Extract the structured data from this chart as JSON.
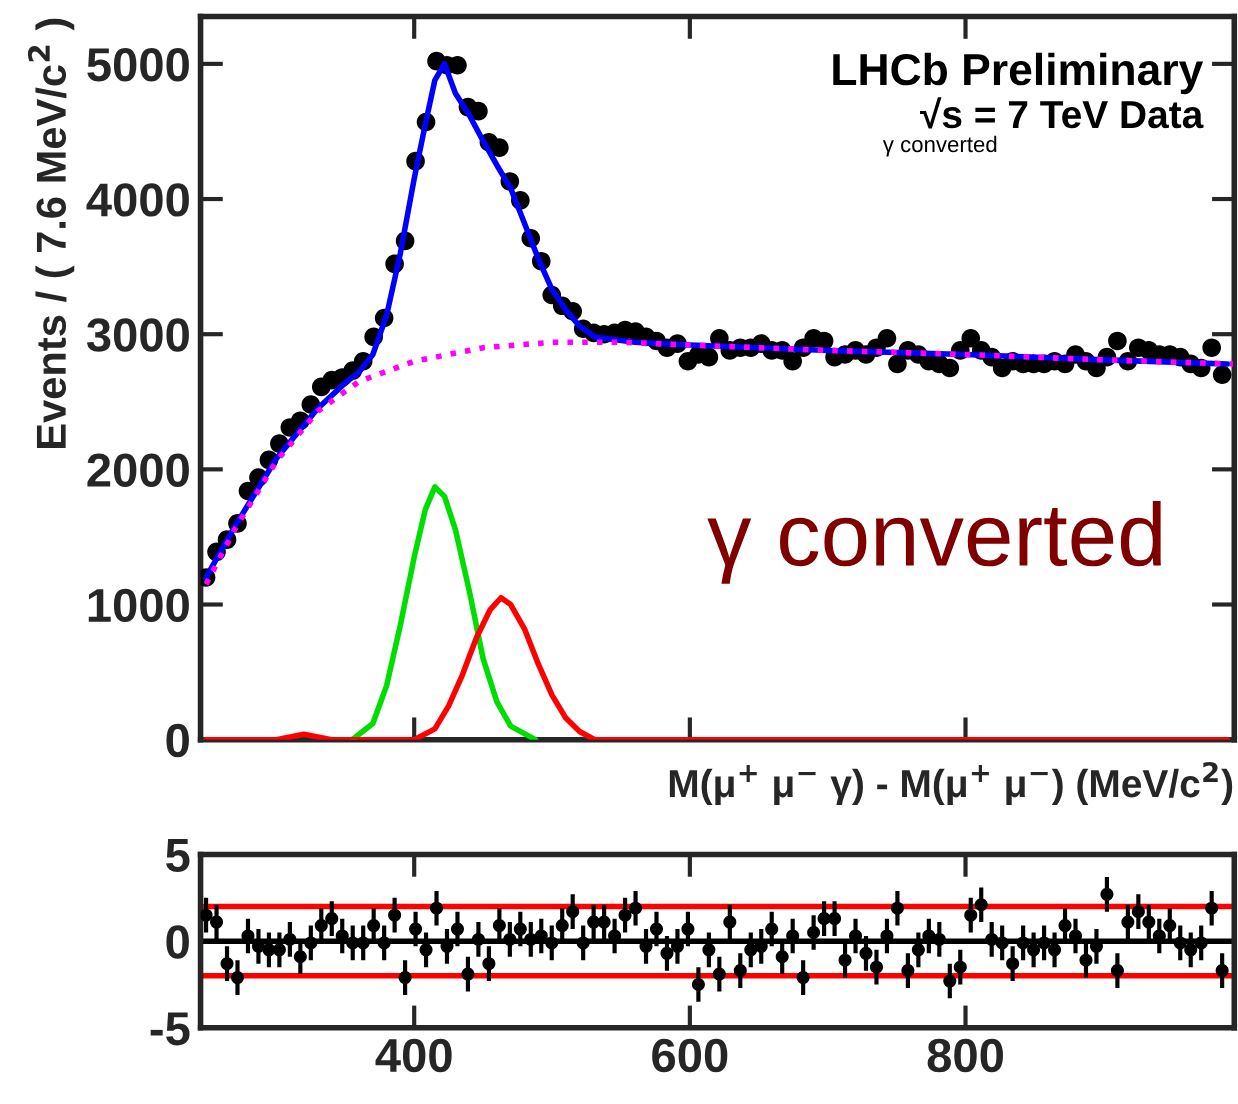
{
  "chart_data": [
    {
      "type": "scatter",
      "ylabel": "Events / ( 7.6 MeV/c$^{2}$ )",
      "xlabel": "M(μ$^{+}$ μ$^{−}$ γ) - M(μ$^{+}$ μ$^{−}$) (MeV/c$^{2}$)",
      "xlim": [
        245,
        995
      ],
      "xticks": [
        {
          "value": 400,
          "label": null
        },
        {
          "value": 600,
          "label": null
        },
        {
          "value": 800,
          "label": null
        }
      ],
      "ylim": [
        0,
        5350
      ],
      "yticks": [
        0,
        1000,
        2000,
        3000,
        4000,
        5000
      ],
      "tick_labels": "y",
      "grid": false,
      "legend": false,
      "annotations": [
        "LHCb Preliminary",
        "√s = 7 TeV Data",
        "γ converted",
        "γ converted"
      ],
      "series": [
        {
          "type": "scatter",
          "color": "#000000",
          "marker": "circle",
          "x": [
            249,
            256.6,
            264.2,
            271.8,
            279.4,
            287,
            294.6,
            302.2,
            309.8,
            317.4,
            325,
            332.6,
            340.2,
            347.8,
            355.4,
            363,
            370.6,
            378.2,
            385.8,
            393.4,
            401,
            408.6,
            416.2,
            423.8,
            431.4,
            439,
            446.6,
            454.2,
            461.8,
            469.4,
            477,
            484.6,
            492.2,
            499.8,
            507.4,
            515,
            522.6,
            530.2,
            537.8,
            545.4,
            553,
            560.6,
            568.2,
            575.8,
            583.4,
            591,
            598.6,
            606.2,
            613.8,
            621.4,
            629,
            636.6,
            644.2,
            651.8,
            659.4,
            667,
            674.6,
            682.2,
            689.8,
            697.4,
            705,
            712.6,
            720.2,
            727.8,
            735.4,
            743,
            750.6,
            758.2,
            765.8,
            773.4,
            781,
            788.6,
            796.2,
            803.8,
            811.4,
            819,
            826.6,
            834.2,
            841.8,
            849.4,
            857,
            864.6,
            872.2,
            879.8,
            887.4,
            895,
            902.6,
            910.2,
            917.8,
            925.4,
            933,
            940.6,
            948.2,
            955.8,
            963.4,
            971,
            978.6,
            986.2
          ],
          "values": [
            1200,
            1390,
            1480,
            1600,
            1840,
            1940,
            2070,
            2190,
            2310,
            2360,
            2480,
            2610,
            2660,
            2680,
            2730,
            2800,
            2980,
            3120,
            3520,
            3690,
            4280,
            4570,
            5020,
            4990,
            4990,
            4680,
            4650,
            4420,
            4380,
            4130,
            3990,
            3710,
            3540,
            3290,
            3210,
            3170,
            3040,
            3010,
            3000,
            3010,
            3030,
            3020,
            2980,
            2950,
            2900,
            2930,
            2800,
            2850,
            2830,
            2970,
            2880,
            2900,
            2900,
            2930,
            2880,
            2880,
            2800,
            2900,
            2970,
            2950,
            2830,
            2850,
            2880,
            2850,
            2900,
            2970,
            2780,
            2880,
            2850,
            2800,
            2780,
            2750,
            2880,
            2970,
            2880,
            2830,
            2750,
            2800,
            2780,
            2780,
            2780,
            2800,
            2780,
            2850,
            2800,
            2750,
            2830,
            2950,
            2800,
            2900,
            2880,
            2850,
            2850,
            2830,
            2780,
            2750,
            2900,
            2700
          ]
        },
        {
          "type": "line",
          "color": "#0000ff",
          "line_style": "solid",
          "x": [
            249,
            270,
            300,
            330,
            350,
            360,
            370,
            380,
            390,
            400,
            408,
            415,
            422,
            430,
            440,
            450,
            460,
            470,
            480,
            490,
            500,
            510,
            520,
            531,
            560,
            600,
            700,
            800,
            900,
            990
          ],
          "values": [
            1200,
            1580,
            2080,
            2450,
            2640,
            2720,
            2850,
            3140,
            3600,
            4150,
            4550,
            4880,
            5000,
            4780,
            4620,
            4430,
            4250,
            4080,
            3820,
            3560,
            3330,
            3180,
            3060,
            2980,
            2940,
            2920,
            2880,
            2850,
            2810,
            2780
          ]
        },
        {
          "type": "line",
          "color": "#00dd00",
          "line_style": "solid",
          "x": [
            355,
            370,
            380,
            390,
            400,
            408,
            415,
            422,
            430,
            440,
            450,
            460,
            470,
            488
          ],
          "values": [
            0,
            120,
            400,
            850,
            1350,
            1700,
            1870,
            1800,
            1550,
            1100,
            600,
            280,
            100,
            0
          ]
        },
        {
          "type": "line",
          "color": "#ff0000",
          "line_style": "solid",
          "x": [
            249,
            300,
            320,
            340,
            400,
            415,
            425,
            435,
            445,
            455,
            463,
            470,
            480,
            490,
            500,
            510,
            520,
            531,
            990
          ],
          "values": [
            0,
            0,
            40,
            0,
            0,
            80,
            250,
            480,
            750,
            960,
            1050,
            1000,
            820,
            560,
            330,
            160,
            60,
            0,
            0
          ]
        },
        {
          "type": "line",
          "color": "#ff00ff",
          "line_style": "dotted",
          "x": [
            249,
            270,
            300,
            330,
            360,
            400,
            450,
            500,
            550,
            600,
            700,
            800,
            900,
            994
          ],
          "values": [
            1150,
            1560,
            2060,
            2430,
            2650,
            2800,
            2900,
            2940,
            2940,
            2920,
            2880,
            2850,
            2810,
            2780
          ]
        }
      ]
    },
    {
      "type": "scatter",
      "xlim": [
        245,
        995
      ],
      "xticks": [
        400,
        600,
        800
      ],
      "ylim": [
        -5,
        5
      ],
      "yticks": [
        -5,
        0,
        5
      ],
      "grid": false,
      "legend": false,
      "ref_lines": [
        {
          "axis": "y",
          "value": 0,
          "color": "#000000"
        },
        {
          "axis": "y",
          "value": 2,
          "color": "#ff0000"
        },
        {
          "axis": "y",
          "value": -2,
          "color": "#ff0000"
        }
      ],
      "series": [
        {
          "type": "scatter",
          "color": "#000000",
          "marker": "circle",
          "x": [
            249,
            256.6,
            264.2,
            271.8,
            279.4,
            287,
            294.6,
            302.2,
            309.8,
            317.4,
            325,
            332.6,
            340.2,
            347.8,
            355.4,
            363,
            370.6,
            378.2,
            385.8,
            393.4,
            401,
            408.6,
            416.2,
            423.8,
            431.4,
            439,
            446.6,
            454.2,
            461.8,
            469.4,
            477,
            484.6,
            492.2,
            499.8,
            507.4,
            515,
            522.6,
            530.2,
            537.8,
            545.4,
            553,
            560.6,
            568.2,
            575.8,
            583.4,
            591,
            598.6,
            606.2,
            613.8,
            621.4,
            629,
            636.6,
            644.2,
            651.8,
            659.4,
            667,
            674.6,
            682.2,
            689.8,
            697.4,
            705,
            712.6,
            720.2,
            727.8,
            735.4,
            743,
            750.6,
            758.2,
            765.8,
            773.4,
            781,
            788.6,
            796.2,
            803.8,
            811.4,
            819,
            826.6,
            834.2,
            841.8,
            849.4,
            857,
            864.6,
            872.2,
            879.8,
            887.4,
            895,
            902.6,
            910.2,
            917.8,
            925.4,
            933,
            940.6,
            948.2,
            955.8,
            963.4,
            971,
            978.6,
            986.2
          ],
          "values": [
            1.5,
            1.1,
            -1.3,
            -2.1,
            0.3,
            -0.3,
            -0.5,
            -0.5,
            0.1,
            -0.9,
            -0.1,
            0.9,
            1.3,
            0.3,
            -0.1,
            -0.1,
            0.9,
            -0.1,
            1.5,
            -2.1,
            0.7,
            -0.5,
            1.9,
            -0.3,
            0.7,
            -1.9,
            0.1,
            -1.3,
            0.9,
            0.1,
            0.7,
            0.1,
            0.3,
            -0.1,
            0.9,
            1.7,
            -0.1,
            1.1,
            1.1,
            0.3,
            1.5,
            1.9,
            -0.3,
            0.7,
            -0.7,
            -0.3,
            0.7,
            -2.5,
            -0.5,
            -1.9,
            1.1,
            -1.7,
            -0.5,
            -0.3,
            0.7,
            -0.9,
            0.3,
            -2.1,
            0.5,
            1.3,
            1.3,
            -1.1,
            0.3,
            -0.7,
            -1.5,
            0.3,
            1.9,
            -1.7,
            -0.5,
            0.3,
            0.1,
            -2.3,
            -1.5,
            1.5,
            2.1,
            0.1,
            -0.1,
            -1.3,
            -0.1,
            -0.5,
            -0.1,
            -0.5,
            0.9,
            0.3,
            -1.1,
            -0.3,
            2.7,
            -1.7,
            1.1,
            1.7,
            1.1,
            0.3,
            0.9,
            -0.1,
            -0.5,
            -0.1,
            1.9,
            -1.7
          ],
          "errors": [
            1,
            1,
            1,
            1,
            1,
            1,
            1,
            1,
            1,
            1,
            1,
            1,
            1,
            1,
            1,
            1,
            1,
            1,
            1,
            1,
            1,
            1,
            1,
            1,
            1,
            1,
            1,
            1,
            1,
            1,
            1,
            1,
            1,
            1,
            1,
            1,
            1,
            1,
            1,
            1,
            1,
            1,
            1,
            1,
            1,
            1,
            1,
            1,
            1,
            1,
            1,
            1,
            1,
            1,
            1,
            1,
            1,
            1,
            1,
            1,
            1,
            1,
            1,
            1,
            1,
            1,
            1,
            1,
            1,
            1,
            1,
            1,
            1,
            1,
            1,
            1,
            1,
            1,
            1,
            1,
            1,
            1,
            1,
            1,
            1,
            1,
            1,
            1,
            1,
            1,
            1,
            1,
            1,
            1,
            1,
            1,
            1,
            1
          ]
        }
      ]
    }
  ]
}
